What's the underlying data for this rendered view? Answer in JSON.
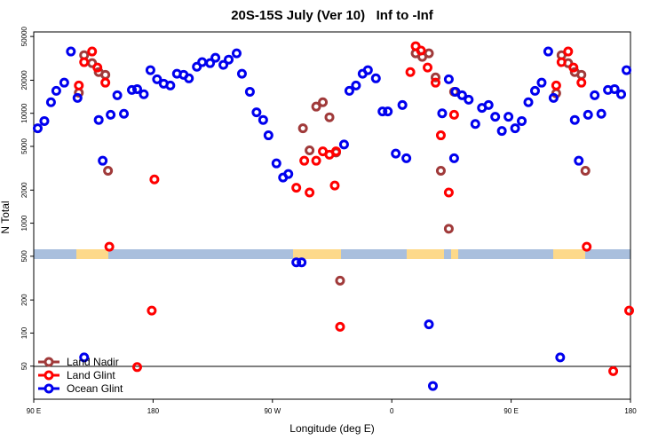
{
  "chart_data": {
    "type": "scatter",
    "title": "20S-15S July (Ver 10)   Inf to -Inf",
    "x_label": "Longitude (deg E)",
    "y_label": "N Total",
    "log_y": true,
    "legend": "bottom-left",
    "xlim": [
      90,
      540
    ],
    "xticks": [
      {
        "value": 90,
        "label": "90 E"
      },
      180,
      {
        "value": 270,
        "label": "90 W"
      },
      {
        "value": 360,
        "label": "0"
      },
      {
        "value": 450,
        "label": "90 E"
      },
      {
        "value": 540,
        "label": "180"
      }
    ],
    "ylim": [
      25,
      55000
    ],
    "yticks": [
      50,
      100,
      200,
      500,
      1000,
      2000,
      5000,
      10000,
      20000,
      50000
    ],
    "series": [
      {
        "name": "Land Nadir",
        "color": "#a03a3a",
        "x": [
          124,
          128,
          134,
          139,
          144,
          146,
          293,
          298,
          303,
          308,
          313,
          318,
          321,
          378,
          383,
          388,
          393,
          397,
          403,
          407,
          484,
          488,
          493,
          498,
          503,
          506
        ],
        "values": [
          15400,
          33800,
          28600,
          23700,
          22400,
          3000,
          7300,
          4600,
          11500,
          12600,
          9200,
          4400,
          300,
          35100,
          32600,
          35100,
          21200,
          3000,
          890,
          15700,
          15200,
          33800,
          28600,
          23700,
          22400,
          3000
        ]
      },
      {
        "name": "Land Glint",
        "color": "#ff0000",
        "x": [
          124,
          128,
          134,
          138,
          144,
          147,
          168,
          179,
          181,
          288,
          294,
          298,
          303,
          308,
          313,
          317,
          318,
          321,
          374,
          378,
          382,
          387,
          393,
          397,
          403,
          407,
          484,
          488,
          493,
          497,
          503,
          507,
          527,
          539
        ],
        "values": [
          17900,
          29200,
          36500,
          26100,
          19000,
          610,
          49,
          160,
          2500,
          2100,
          3700,
          1900,
          3700,
          4500,
          4200,
          2200,
          4500,
          114,
          23700,
          40800,
          37200,
          26100,
          19000,
          6300,
          1900,
          9700,
          17900,
          29200,
          36500,
          26100,
          19000,
          610,
          45,
          160
        ]
      },
      {
        "name": "Ocean Glint",
        "color": "#0000ee",
        "x": [
          93,
          98,
          103,
          107,
          113,
          118,
          123,
          128,
          139,
          142,
          148,
          153,
          158,
          164,
          168,
          173,
          178,
          183,
          188,
          193,
          198,
          203,
          207,
          213,
          217,
          223,
          227,
          233,
          237,
          243,
          247,
          253,
          258,
          263,
          267,
          273,
          278,
          282,
          288,
          292,
          324,
          328,
          333,
          338,
          342,
          348,
          353,
          357,
          363,
          368,
          371,
          388,
          391,
          398,
          403,
          407,
          408,
          413,
          418,
          423,
          428,
          433,
          438,
          443,
          448,
          453,
          458,
          463,
          468,
          473,
          478,
          482,
          487,
          498,
          501,
          508,
          513,
          518,
          523,
          528,
          533,
          537
        ],
        "values": [
          7300,
          8500,
          12600,
          16000,
          19000,
          36500,
          13800,
          60,
          8700,
          3700,
          9700,
          14600,
          9900,
          16300,
          16600,
          14900,
          24700,
          20400,
          18600,
          17900,
          22900,
          22400,
          20800,
          26500,
          29200,
          28600,
          32000,
          27600,
          30800,
          35100,
          22900,
          15700,
          10200,
          8700,
          6300,
          3500,
          2600,
          2800,
          440,
          440,
          5200,
          16000,
          17900,
          22900,
          24700,
          20800,
          10400,
          10400,
          4300,
          11900,
          3900,
          120,
          33,
          10000,
          20400,
          3900,
          15700,
          14600,
          13300,
          8000,
          11200,
          11900,
          9300,
          6900,
          9300,
          7300,
          8500,
          12600,
          16000,
          19000,
          36500,
          13800,
          60,
          8700,
          3700,
          9700,
          14600,
          9900,
          16300,
          16600,
          14900,
          24700
        ]
      }
    ]
  }
}
